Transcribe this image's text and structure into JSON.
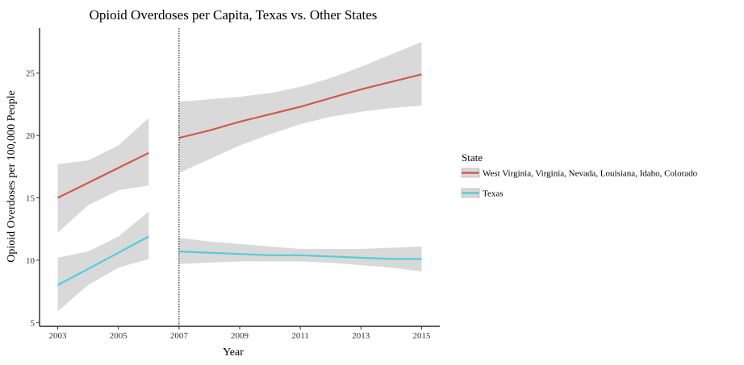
{
  "chart_data": {
    "type": "line",
    "title": "Opioid Overdoses per Capita, Texas vs. Other States",
    "xlabel": "Year",
    "ylabel": "Opioid Overdoses per 100,000 People",
    "x_ticks": [
      "2003",
      "2005",
      "2007",
      "2009",
      "2011",
      "2013",
      "2015"
    ],
    "y_ticks": [
      "5",
      "10",
      "15",
      "20",
      "25"
    ],
    "xlim": [
      2002.4,
      2015.6
    ],
    "ylim": [
      4.7,
      28.6
    ],
    "policy_line_x": 2007,
    "grid": false,
    "legend": {
      "title": "State",
      "position": "right"
    },
    "series": [
      {
        "name": "West Virginia, Virginia, Nevada, Louisiana, Idaho, Colorado",
        "color": "#D2584C",
        "segments": [
          {
            "x": [
              2003,
              2004,
              2005,
              2006
            ],
            "y": [
              15.0,
              16.2,
              17.4,
              18.6
            ],
            "lower": [
              12.2,
              14.4,
              15.6,
              16.0
            ],
            "upper": [
              17.7,
              18.0,
              19.2,
              21.4
            ]
          },
          {
            "x": [
              2007,
              2008,
              2009,
              2010,
              2011,
              2012,
              2013,
              2014,
              2015
            ],
            "y": [
              19.8,
              20.4,
              21.1,
              21.7,
              22.3,
              23.0,
              23.7,
              24.3,
              24.9
            ],
            "lower": [
              17.0,
              18.1,
              19.2,
              20.1,
              20.9,
              21.5,
              21.9,
              22.2,
              22.4
            ],
            "upper": [
              22.7,
              22.9,
              23.1,
              23.4,
              23.9,
              24.6,
              25.5,
              26.5,
              27.5
            ]
          }
        ]
      },
      {
        "name": "Texas",
        "color": "#52CED8",
        "segments": [
          {
            "x": [
              2003,
              2004,
              2005,
              2006
            ],
            "y": [
              8.0,
              9.3,
              10.6,
              11.9
            ],
            "lower": [
              5.9,
              8.0,
              9.4,
              10.1
            ],
            "upper": [
              10.2,
              10.7,
              11.9,
              13.9
            ]
          },
          {
            "x": [
              2007,
              2008,
              2009,
              2010,
              2011,
              2012,
              2013,
              2014,
              2015
            ],
            "y": [
              10.7,
              10.6,
              10.5,
              10.4,
              10.4,
              10.3,
              10.2,
              10.1,
              10.1
            ],
            "lower": [
              9.7,
              9.8,
              9.9,
              9.9,
              9.9,
              9.8,
              9.6,
              9.4,
              9.1
            ],
            "upper": [
              11.8,
              11.5,
              11.3,
              11.1,
              10.9,
              10.9,
              10.9,
              11.0,
              11.1
            ]
          }
        ]
      }
    ],
    "band_color": "#D9D9D9"
  }
}
